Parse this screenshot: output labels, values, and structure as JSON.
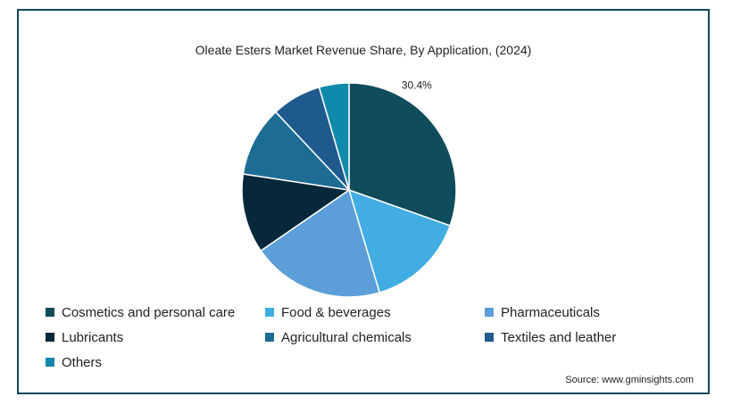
{
  "chart_data": {
    "type": "pie",
    "title": "Oleate Esters Market Revenue Share, By Application, (2024)",
    "slices": [
      {
        "label": "Cosmetics and personal care",
        "value": 30.4,
        "color": "#0f4c5c",
        "data_label": "30.4%"
      },
      {
        "label": "Food & beverages",
        "value": 15.0,
        "color": "#42ade2"
      },
      {
        "label": "Pharmaceuticals",
        "value": 20.0,
        "color": "#5c9fd8"
      },
      {
        "label": "Lubricants",
        "value": 12.0,
        "color": "#06283a"
      },
      {
        "label": "Agricultural chemicals",
        "value": 10.6,
        "color": "#1d6c94"
      },
      {
        "label": "Textiles and leather",
        "value": 7.5,
        "color": "#1f5a8e"
      },
      {
        "label": "Others",
        "value": 4.5,
        "color": "#0f8aaa"
      }
    ],
    "legend_position": "bottom"
  },
  "source": "Source: www.gminsights.com"
}
